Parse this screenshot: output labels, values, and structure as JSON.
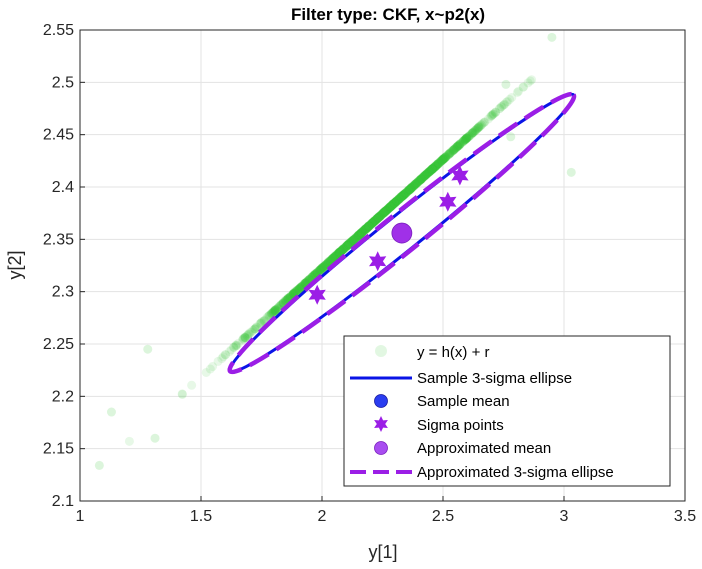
{
  "chart_data": {
    "type": "scatter",
    "title": "Filter type: CKF, x~p2(x)",
    "xlabel": "y[1]",
    "ylabel": "y[2]",
    "xlim": [
      1,
      3.5
    ],
    "ylim": [
      2.1,
      2.55
    ],
    "xticks": [
      "1",
      "1.5",
      "2",
      "2.5",
      "3",
      "3.5"
    ],
    "yticks": [
      "2.1",
      "2.15",
      "2.2",
      "2.25",
      "2.3",
      "2.35",
      "2.4",
      "2.45",
      "2.5",
      "2.55"
    ],
    "grid": true,
    "legend_position": "bottom-right",
    "series": [
      {
        "name": "y = h(x) + r",
        "kind": "scatter",
        "color": "#3cc83c",
        "description_points": "dense cloud along line from (1.1,2.14) to (2.95,2.54)"
      },
      {
        "name": "Sample 3-sigma ellipse",
        "kind": "ellipse",
        "color": "#0a14e6"
      },
      {
        "name": "Sample mean",
        "kind": "marker",
        "color": "#2a3df0",
        "x": 2.33,
        "y": 2.356
      },
      {
        "name": "Sigma points",
        "kind": "marker",
        "color": "#9b1ee6",
        "points": [
          [
            2.33,
            2.356
          ],
          [
            2.57,
            2.411
          ],
          [
            2.52,
            2.386
          ],
          [
            2.23,
            2.329
          ],
          [
            1.98,
            2.297
          ]
        ]
      },
      {
        "name": "Approximated mean",
        "kind": "marker",
        "color": "#9b1ee6",
        "x": 2.33,
        "y": 2.356
      },
      {
        "name": "Approximated 3-sigma ellipse",
        "kind": "ellipse-dashed",
        "color": "#9b1ee6"
      }
    ],
    "ellipse_sample": {
      "center": [
        2.33,
        2.356
      ],
      "end_a": [
        3.04,
        2.488
      ],
      "end_b": [
        1.62,
        2.224
      ],
      "minor_half": 0.017
    },
    "ellipse_approx": {
      "center": [
        2.33,
        2.356
      ],
      "end_a": [
        3.04,
        2.488
      ],
      "end_b": [
        1.62,
        2.224
      ],
      "minor_half": 0.018
    }
  }
}
